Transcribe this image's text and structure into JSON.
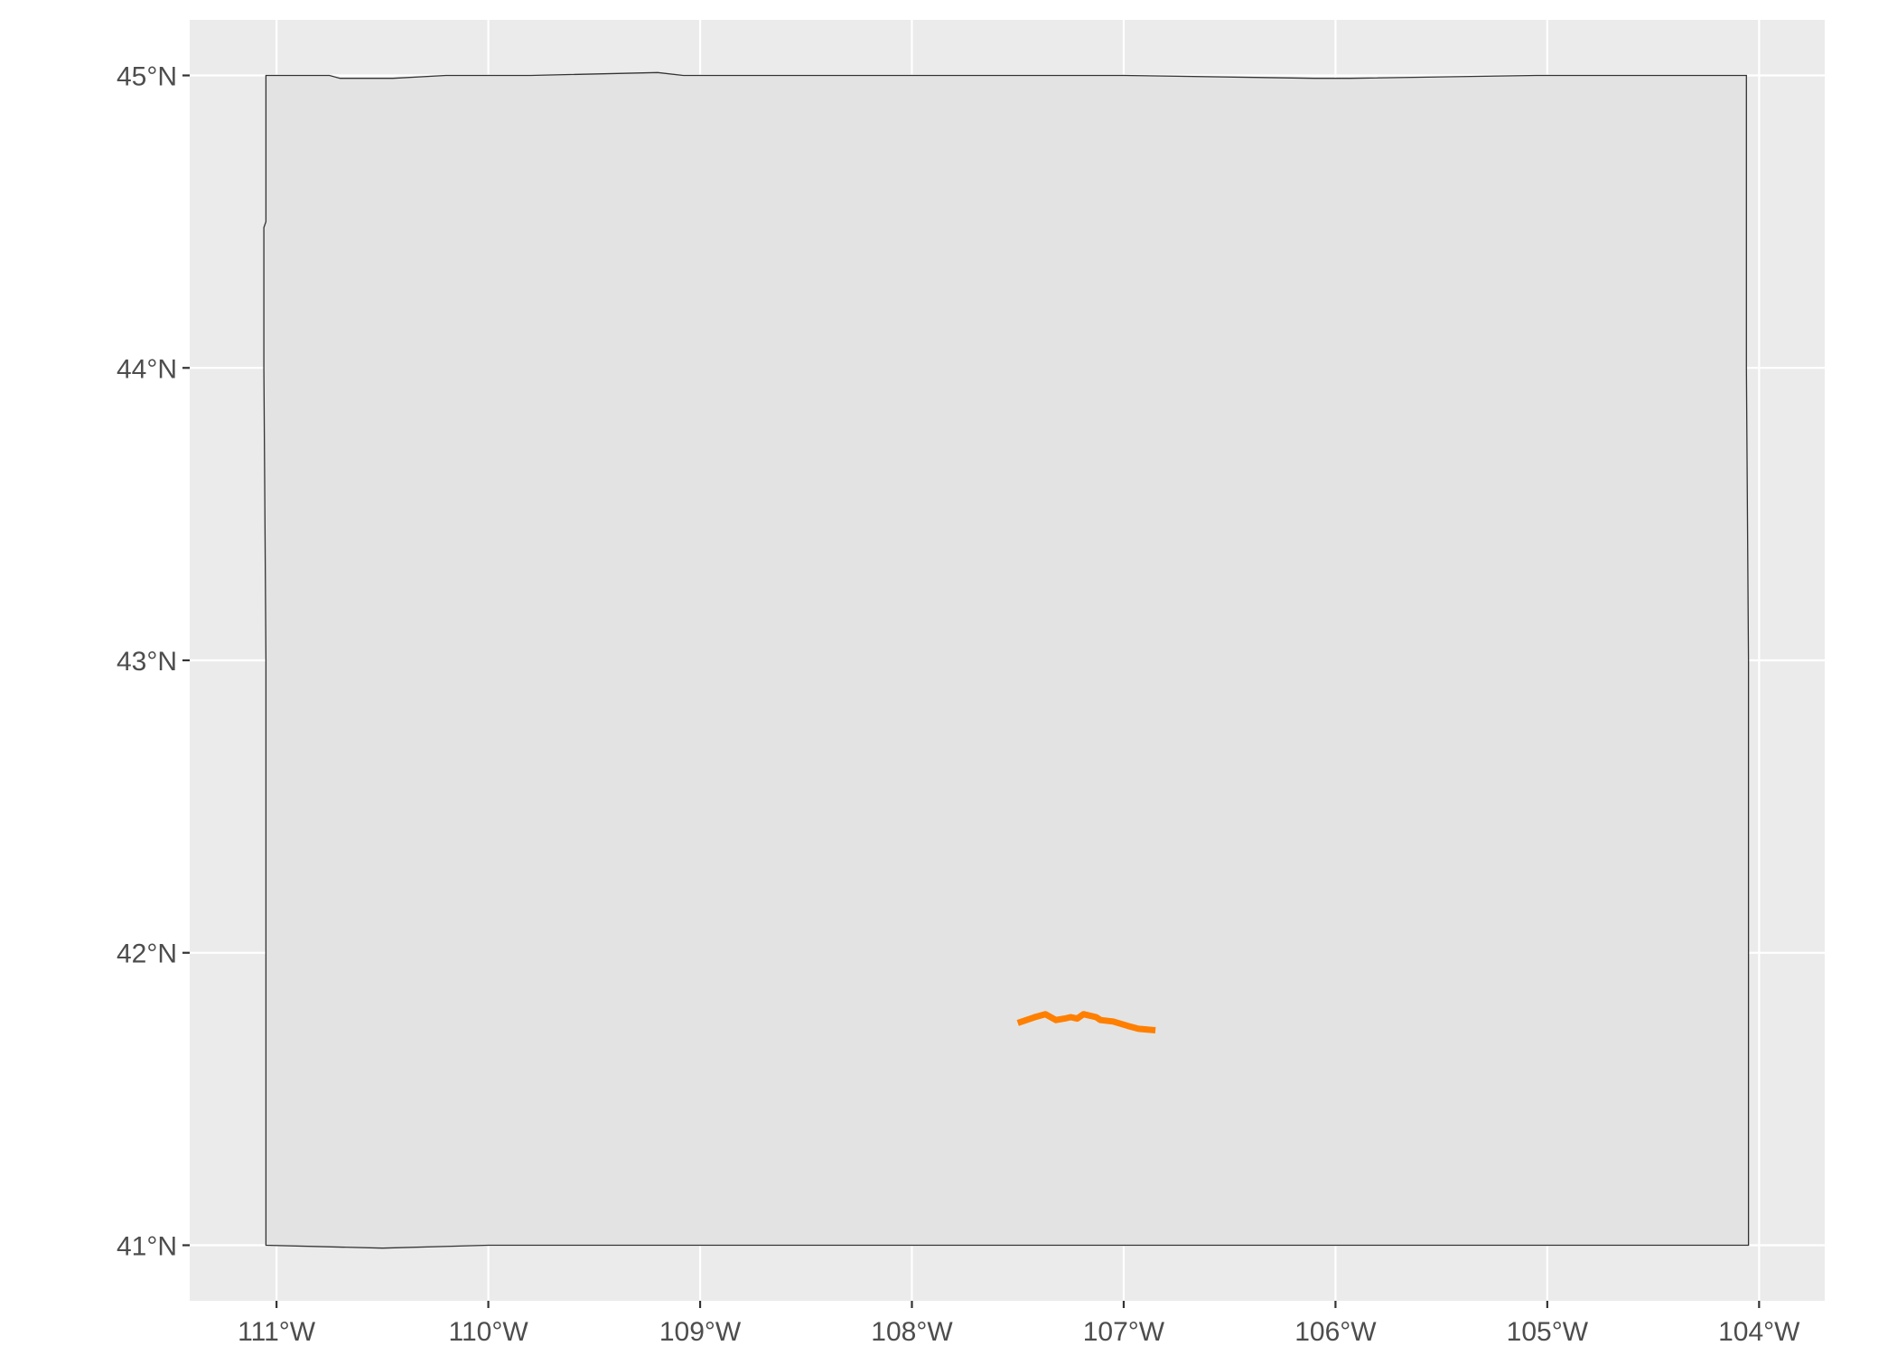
{
  "map": {
    "background_color": "#ebebeb",
    "grid_color": "#ffffff",
    "region_fill": "#e3e3e3",
    "region_border_color": "#333333",
    "route_color": "#ff7f00",
    "lon_range": [
      -111.41,
      -103.69
    ],
    "lat_range": [
      40.81,
      45.19
    ],
    "x_ticks": [
      {
        "value": -111,
        "label": "111°W"
      },
      {
        "value": -110,
        "label": "110°W"
      },
      {
        "value": -109,
        "label": "109°W"
      },
      {
        "value": -108,
        "label": "108°W"
      },
      {
        "value": -107,
        "label": "107°W"
      },
      {
        "value": -106,
        "label": "106°W"
      },
      {
        "value": -105,
        "label": "105°W"
      },
      {
        "value": -104,
        "label": "104°W"
      }
    ],
    "y_ticks": [
      {
        "value": 41,
        "label": "41°N"
      },
      {
        "value": 42,
        "label": "42°N"
      },
      {
        "value": 43,
        "label": "43°N"
      },
      {
        "value": 44,
        "label": "44°N"
      },
      {
        "value": 45,
        "label": "45°N"
      }
    ],
    "region_outline": [
      [
        -111.05,
        45.0
      ],
      [
        -110.75,
        45.0
      ],
      [
        -110.7,
        44.99
      ],
      [
        -110.45,
        44.99
      ],
      [
        -110.2,
        45.0
      ],
      [
        -109.8,
        45.0
      ],
      [
        -109.2,
        45.01
      ],
      [
        -109.08,
        45.0
      ],
      [
        -108.0,
        45.0
      ],
      [
        -107.0,
        45.0
      ],
      [
        -106.1,
        44.99
      ],
      [
        -105.93,
        44.99
      ],
      [
        -105.05,
        45.0
      ],
      [
        -104.06,
        45.0
      ],
      [
        -104.06,
        44.0
      ],
      [
        -104.05,
        43.0
      ],
      [
        -104.05,
        42.0
      ],
      [
        -104.05,
        41.0
      ],
      [
        -104.5,
        41.0
      ],
      [
        -105.0,
        41.0
      ],
      [
        -106.0,
        41.0
      ],
      [
        -106.4,
        41.0
      ],
      [
        -107.0,
        41.0
      ],
      [
        -108.0,
        41.0
      ],
      [
        -109.0,
        41.0
      ],
      [
        -109.2,
        41.0
      ],
      [
        -110.0,
        41.0
      ],
      [
        -110.5,
        40.99
      ],
      [
        -111.05,
        41.0
      ],
      [
        -111.05,
        42.0
      ],
      [
        -111.05,
        43.0
      ],
      [
        -111.06,
        44.0
      ],
      [
        -111.06,
        44.48
      ],
      [
        -111.05,
        44.5
      ],
      [
        -111.05,
        45.0
      ]
    ],
    "route_line": [
      [
        -107.5,
        41.76
      ],
      [
        -107.42,
        41.78
      ],
      [
        -107.37,
        41.79
      ],
      [
        -107.32,
        41.77
      ],
      [
        -107.28,
        41.775
      ],
      [
        -107.25,
        41.78
      ],
      [
        -107.22,
        41.775
      ],
      [
        -107.19,
        41.79
      ],
      [
        -107.13,
        41.78
      ],
      [
        -107.11,
        41.77
      ],
      [
        -107.05,
        41.765
      ],
      [
        -106.98,
        41.75
      ],
      [
        -106.93,
        41.74
      ],
      [
        -106.85,
        41.735
      ]
    ]
  }
}
